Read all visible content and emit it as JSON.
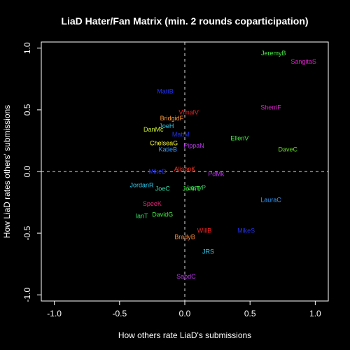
{
  "chart_data": {
    "type": "scatter",
    "title": "LiaD Hater/Fan Matrix (min. 2 rounds coparticipation)",
    "xlabel": "How others rate LiaD's submissions",
    "ylabel": "How LiaD rates others' submissions",
    "xlim": [
      -1.1,
      1.1
    ],
    "ylim": [
      -1.05,
      1.05
    ],
    "xticks": [
      "-1.0",
      "-0.5",
      "0.0",
      "0.5",
      "1.0"
    ],
    "yticks": [
      "-1.0",
      "-0.5",
      "0.0",
      "0.5",
      "1.0"
    ],
    "reference_lines": {
      "x": 0,
      "y": 0,
      "style": "dashed"
    },
    "grid": false,
    "points": [
      {
        "label": "JeremyB",
        "x": 0.68,
        "y": 0.96,
        "color": "#44ee44"
      },
      {
        "label": "SangitaS",
        "x": 0.91,
        "y": 0.89,
        "color": "#dd22cc"
      },
      {
        "label": "MattB",
        "x": -0.15,
        "y": 0.65,
        "color": "#2233ee"
      },
      {
        "label": "SherriF",
        "x": 0.66,
        "y": 0.52,
        "color": "#dd22cc"
      },
      {
        "label": "VimalV",
        "x": 0.03,
        "y": 0.48,
        "color": "#ee2222"
      },
      {
        "label": "BridgidF",
        "x": -0.1,
        "y": 0.43,
        "color": "#ff9933"
      },
      {
        "label": "JoeH",
        "x": -0.14,
        "y": 0.37,
        "color": "#33ccee"
      },
      {
        "label": "DanMc",
        "x": -0.24,
        "y": 0.34,
        "color": "#ccee33"
      },
      {
        "label": "MattM",
        "x": -0.03,
        "y": 0.3,
        "color": "#2233ee"
      },
      {
        "label": "EllenV",
        "x": 0.42,
        "y": 0.27,
        "color": "#44ee44"
      },
      {
        "label": "ChelseaG",
        "x": -0.16,
        "y": 0.23,
        "color": "#ffff33"
      },
      {
        "label": "PippaN",
        "x": 0.07,
        "y": 0.21,
        "color": "#bb33ee"
      },
      {
        "label": "DaveC",
        "x": 0.79,
        "y": 0.18,
        "color": "#66dd22"
      },
      {
        "label": "KatieB",
        "x": -0.13,
        "y": 0.18,
        "color": "#3399ff"
      },
      {
        "label": "AlisonK",
        "x": 0.0,
        "y": 0.02,
        "color": "#ee3322"
      },
      {
        "label": "MikeD",
        "x": -0.21,
        "y": 0.0,
        "color": "#2233ee"
      },
      {
        "label": "PdMk",
        "x": 0.24,
        "y": -0.02,
        "color": "#bb33ee"
      },
      {
        "label": "JordanR",
        "x": -0.33,
        "y": -0.11,
        "color": "#33ccee"
      },
      {
        "label": "JoeC",
        "x": -0.17,
        "y": -0.14,
        "color": "#33ddaa"
      },
      {
        "label": "LarryP",
        "x": 0.09,
        "y": -0.13,
        "color": "#33dd66"
      },
      {
        "label": "JohnT",
        "x": 0.05,
        "y": -0.14,
        "color": "#44ee44"
      },
      {
        "label": "LauraC",
        "x": 0.66,
        "y": -0.23,
        "color": "#3399ff"
      },
      {
        "label": "SpeeK",
        "x": -0.25,
        "y": -0.26,
        "color": "#ee2277"
      },
      {
        "label": "IanT",
        "x": -0.33,
        "y": -0.36,
        "color": "#33dd66"
      },
      {
        "label": "DavidG",
        "x": -0.17,
        "y": -0.35,
        "color": "#44ee44"
      },
      {
        "label": "WillB",
        "x": 0.15,
        "y": -0.48,
        "color": "#ee2222"
      },
      {
        "label": "MikeS",
        "x": 0.47,
        "y": -0.48,
        "color": "#2233ee"
      },
      {
        "label": "BradyB",
        "x": 0.0,
        "y": -0.53,
        "color": "#ff8833"
      },
      {
        "label": "JRS",
        "x": 0.18,
        "y": -0.65,
        "color": "#33ccee"
      },
      {
        "label": "SabdC",
        "x": 0.01,
        "y": -0.85,
        "color": "#bb33ee"
      }
    ]
  }
}
